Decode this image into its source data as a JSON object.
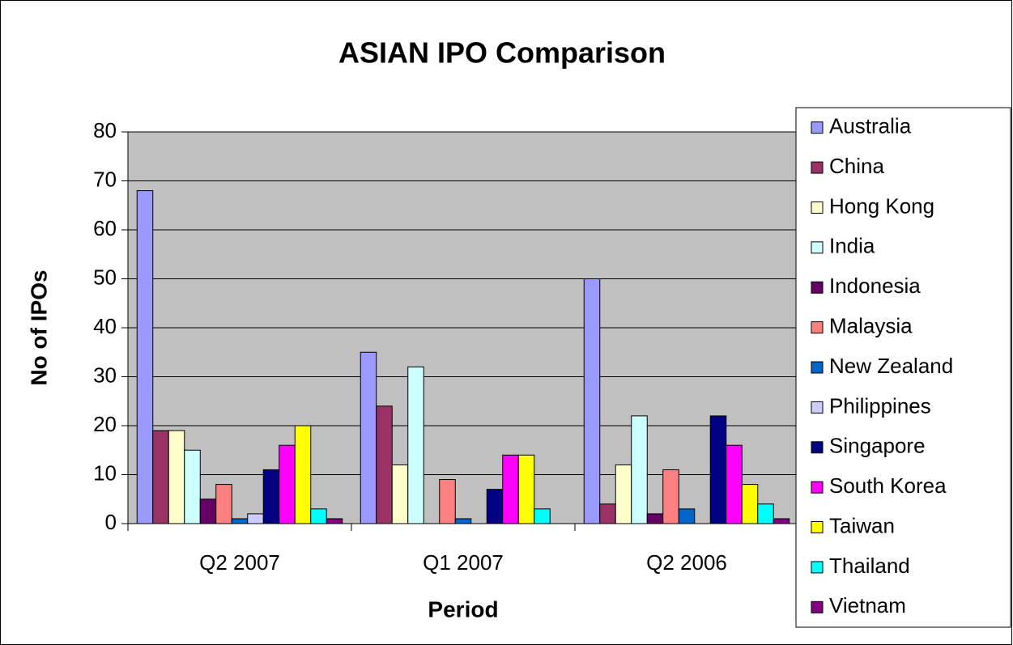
{
  "chart_data": {
    "type": "bar",
    "title": "ASIAN IPO Comparison",
    "x_label": "Period",
    "y_label": "No of IPOs",
    "categories": [
      "Q2 2007",
      "Q1 2007",
      "Q2 2006"
    ],
    "ylim": [
      0,
      80
    ],
    "yticks": [
      0,
      10,
      20,
      30,
      40,
      50,
      60,
      70,
      80
    ],
    "grid": true,
    "legend": "right",
    "series": [
      {
        "name": "Australia",
        "color": "#9999ff",
        "values": [
          68,
          35,
          50
        ]
      },
      {
        "name": "China",
        "color": "#993366",
        "values": [
          19,
          24,
          4
        ]
      },
      {
        "name": "Hong Kong",
        "color": "#ffffcc",
        "values": [
          19,
          12,
          12
        ]
      },
      {
        "name": "India",
        "color": "#ccffff",
        "values": [
          15,
          32,
          22
        ]
      },
      {
        "name": "Indonesia",
        "color": "#660066",
        "values": [
          5,
          0,
          2
        ]
      },
      {
        "name": "Malaysia",
        "color": "#ff8080",
        "values": [
          8,
          9,
          11
        ]
      },
      {
        "name": "New Zealand",
        "color": "#0066cc",
        "values": [
          1,
          1,
          3
        ]
      },
      {
        "name": "Philippines",
        "color": "#ccccff",
        "values": [
          2,
          0,
          0
        ]
      },
      {
        "name": "Singapore",
        "color": "#000080",
        "values": [
          11,
          7,
          22
        ]
      },
      {
        "name": "South Korea",
        "color": "#ff00ff",
        "values": [
          16,
          14,
          16
        ]
      },
      {
        "name": "Taiwan",
        "color": "#ffff00",
        "values": [
          20,
          14,
          8
        ]
      },
      {
        "name": "Thailand",
        "color": "#00ffff",
        "values": [
          3,
          3,
          4
        ]
      },
      {
        "name": "Vietnam",
        "color": "#800080",
        "values": [
          1,
          0,
          1
        ]
      }
    ]
  }
}
